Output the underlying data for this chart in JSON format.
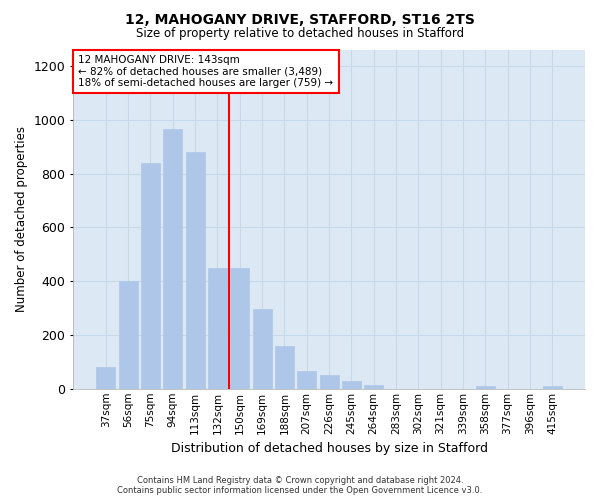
{
  "title1": "12, MAHOGANY DRIVE, STAFFORD, ST16 2TS",
  "title2": "Size of property relative to detached houses in Stafford",
  "xlabel": "Distribution of detached houses by size in Stafford",
  "ylabel": "Number of detached properties",
  "categories": [
    "37sqm",
    "56sqm",
    "75sqm",
    "94sqm",
    "113sqm",
    "132sqm",
    "150sqm",
    "169sqm",
    "188sqm",
    "207sqm",
    "226sqm",
    "245sqm",
    "264sqm",
    "283sqm",
    "302sqm",
    "321sqm",
    "339sqm",
    "358sqm",
    "377sqm",
    "396sqm",
    "415sqm"
  ],
  "values": [
    80,
    400,
    840,
    965,
    880,
    450,
    450,
    295,
    160,
    65,
    50,
    30,
    15,
    0,
    0,
    0,
    0,
    10,
    0,
    0,
    10
  ],
  "bar_color": "#aec6e8",
  "bar_edge_color": "#aec6e8",
  "grid_color": "#c8d8e8",
  "background_color": "#dce9f5",
  "vline_x_index": 5.5,
  "vline_color": "red",
  "annotation_line1": "12 MAHOGANY DRIVE: 143sqm",
  "annotation_line2": "← 82% of detached houses are smaller (3,489)",
  "annotation_line3": "18% of semi-detached houses are larger (759) →",
  "annotation_box_color": "white",
  "annotation_box_edge_color": "red",
  "ylim": [
    0,
    1260
  ],
  "yticks": [
    0,
    200,
    400,
    600,
    800,
    1000,
    1200
  ],
  "footer_line1": "Contains HM Land Registry data © Crown copyright and database right 2024.",
  "footer_line2": "Contains public sector information licensed under the Open Government Licence v3.0."
}
